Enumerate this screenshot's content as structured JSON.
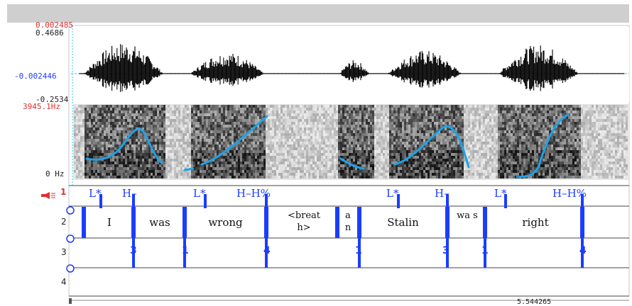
{
  "waveform": {
    "top_label": "0.002485",
    "max_label": "0.4686",
    "center_label": "-0.002446",
    "min_label": "-0.2534"
  },
  "pitch": {
    "max_label": "3945.1Hz",
    "min_label": "0 Hz"
  },
  "tiers": {
    "tones": {
      "number": "1",
      "labels": [
        "L*",
        "H–",
        "L*",
        "H–H%",
        "L*",
        "H–",
        "L*",
        "H–H%"
      ]
    },
    "words": {
      "number": "2",
      "labels": [
        "I",
        "was",
        "wrong",
        "<breat h>",
        "a n",
        "Stalin",
        "wa s",
        "right"
      ]
    },
    "breaks": {
      "number": "3",
      "labels": [
        "3",
        "1",
        "4",
        "1",
        "3",
        "1",
        "4"
      ]
    },
    "misc": {
      "number": "4"
    }
  },
  "footer": {
    "time_label": "5.544265"
  },
  "colors": {
    "accent": "#1a3dff",
    "pitch": "#1fa2e8",
    "marker": "#e03030",
    "cursor": "#36c8e8"
  }
}
